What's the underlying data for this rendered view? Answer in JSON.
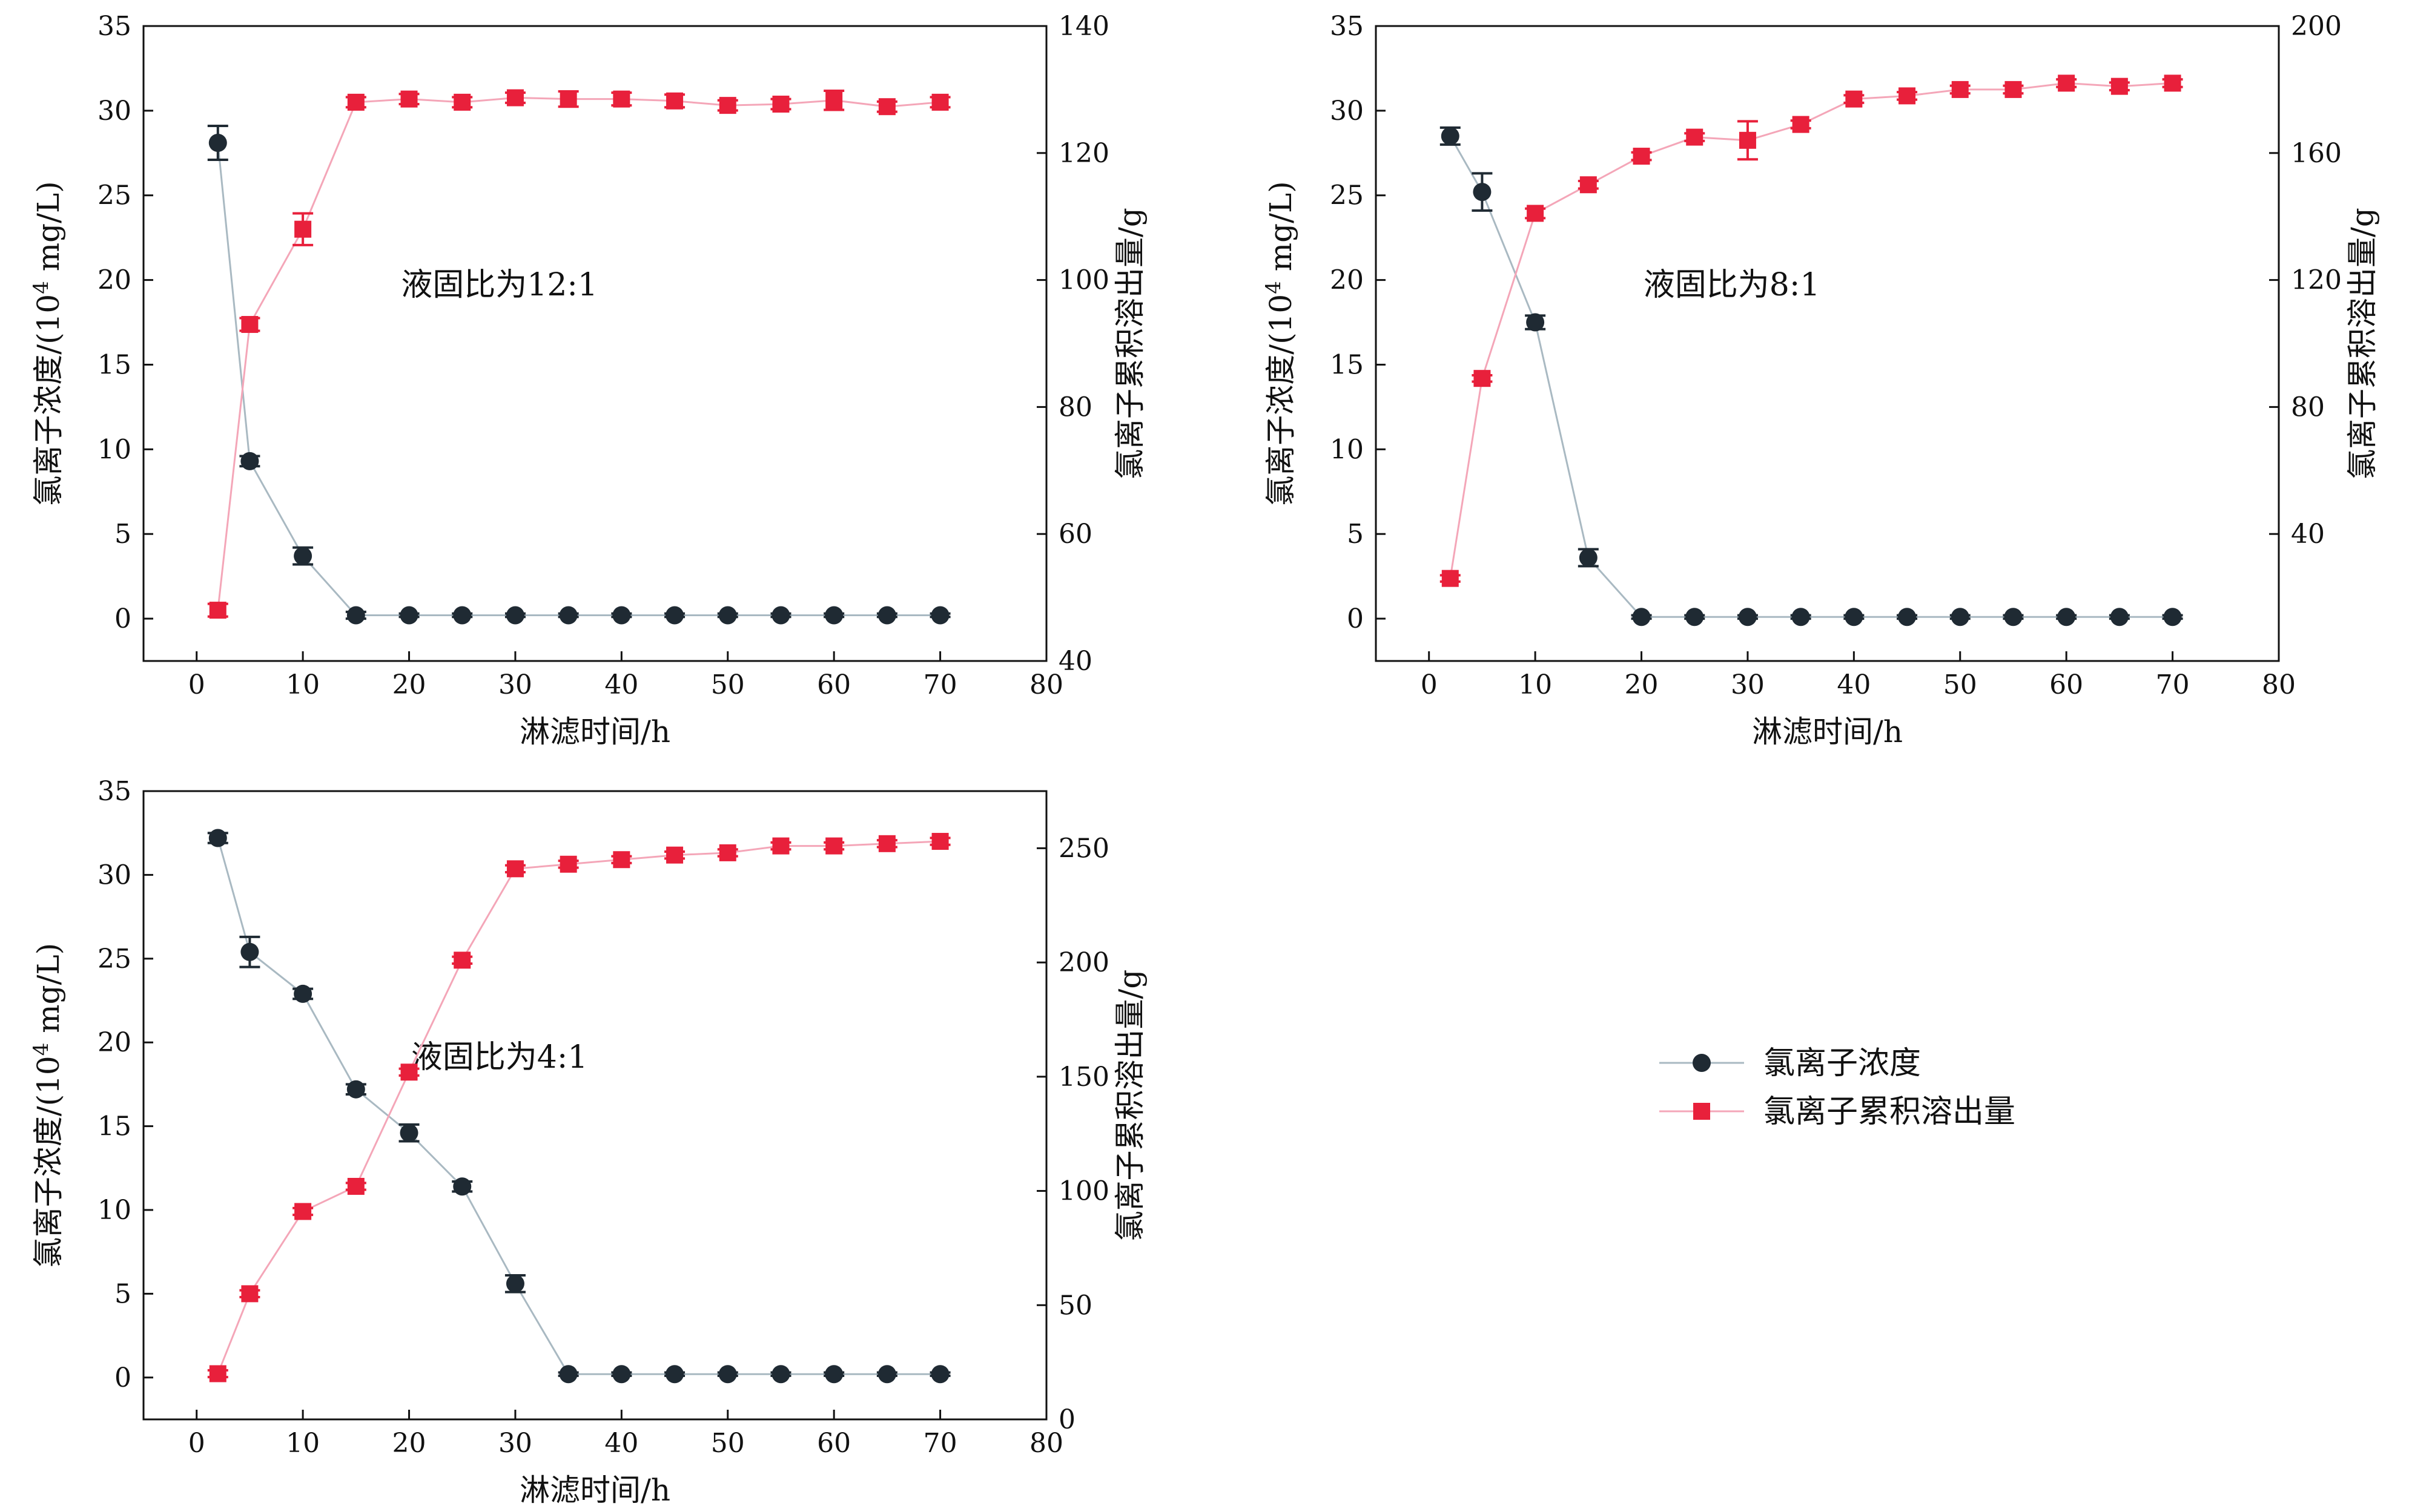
{
  "colors": {
    "chloride_concentration": "#1f2a33",
    "chloride_concentration_line": "#a9b9c2",
    "cumulative_release": "#e8203b",
    "cumulative_release_line": "#f4a6b8",
    "axes": "#111111"
  },
  "legend": {
    "items": [
      {
        "label": "氯离子浓度",
        "marker": "circle",
        "color": "#1f2a33"
      },
      {
        "label": "氯离子累积溶出量",
        "marker": "square",
        "color": "#e8203b"
      }
    ]
  },
  "chart_data": [
    {
      "type": "line",
      "title": "",
      "annotation": "液固比为12:1",
      "xlabel": "淋滤时间/h",
      "ylabel_left": "氯离子浓度/(10⁴ mg/L)",
      "ylabel_right": "氯离子累积溶出量/g",
      "xlim": [
        -5,
        80
      ],
      "xticks": [
        0,
        10,
        20,
        30,
        40,
        50,
        60,
        70,
        80
      ],
      "ylim_left": [
        -2.5,
        35
      ],
      "yticks_left": [
        0,
        5,
        10,
        15,
        20,
        25,
        30,
        35
      ],
      "ylim_right": [
        40,
        140
      ],
      "yticks_right": [
        40,
        60,
        80,
        100,
        120,
        140
      ],
      "x": [
        2,
        5,
        10,
        15,
        20,
        25,
        30,
        35,
        40,
        45,
        50,
        55,
        60,
        65,
        70
      ],
      "series": [
        {
          "name": "氯离子浓度",
          "axis": "left",
          "marker": "circle",
          "values": [
            28.1,
            9.3,
            3.7,
            0.2,
            0.2,
            0.2,
            0.2,
            0.2,
            0.2,
            0.2,
            0.2,
            0.2,
            0.2,
            0.2,
            0.2
          ],
          "errors": [
            1.0,
            0.3,
            0.5,
            0.2,
            0.1,
            0.1,
            0.1,
            0.1,
            0.1,
            0.1,
            0.1,
            0.1,
            0.1,
            0.1,
            0.1
          ]
        },
        {
          "name": "氯离子累积溶出量",
          "axis": "right",
          "marker": "square",
          "values": [
            48,
            93,
            108,
            128,
            128.5,
            128,
            128.7,
            128.5,
            128.5,
            128.2,
            127.5,
            127.7,
            128.3,
            127.3,
            128
          ],
          "errors": [
            1.0,
            1.0,
            2.5,
            0.8,
            0.8,
            0.8,
            0.8,
            1.2,
            1.0,
            1.0,
            0.8,
            0.8,
            1.5,
            0.8,
            0.8
          ]
        }
      ]
    },
    {
      "type": "line",
      "title": "",
      "annotation": "液固比为8:1",
      "xlabel": "淋滤时间/h",
      "ylabel_left": "氯离子浓度/(10⁴ mg/L)",
      "ylabel_right": "氯离子累积溶出量/g",
      "xlim": [
        -5,
        80
      ],
      "xticks": [
        0,
        10,
        20,
        30,
        40,
        50,
        60,
        70,
        80
      ],
      "ylim_left": [
        -2.5,
        35
      ],
      "yticks_left": [
        0,
        5,
        10,
        15,
        20,
        25,
        30,
        35
      ],
      "ylim_right": [
        0,
        200
      ],
      "yticks_right": [
        40,
        80,
        120,
        160,
        200
      ],
      "x": [
        2,
        5,
        10,
        15,
        20,
        25,
        30,
        35,
        40,
        45,
        50,
        55,
        60,
        65,
        70
      ],
      "series": [
        {
          "name": "氯离子浓度",
          "axis": "left",
          "marker": "circle",
          "values": [
            28.5,
            25.2,
            17.5,
            3.6,
            0.1,
            0.1,
            0.1,
            0.1,
            0.1,
            0.1,
            0.1,
            0.1,
            0.1,
            0.1,
            0.1
          ],
          "errors": [
            0.5,
            1.1,
            0.4,
            0.5,
            0.1,
            0.1,
            0.1,
            0.1,
            0.1,
            0.1,
            0.1,
            0.1,
            0.1,
            0.1,
            0.1
          ]
        },
        {
          "name": "氯离子累积溶出量",
          "axis": "right",
          "marker": "square",
          "values": [
            26,
            89,
            141,
            150,
            159,
            165,
            164,
            169,
            177,
            178,
            180,
            180,
            182,
            181,
            182
          ],
          "errors": [
            1.0,
            1.0,
            1.5,
            1.2,
            1.2,
            1.2,
            6.0,
            1.2,
            1.2,
            1.2,
            1.2,
            1.2,
            1.2,
            1.2,
            1.2
          ]
        }
      ]
    },
    {
      "type": "line",
      "title": "",
      "annotation": "液固比为4:1",
      "xlabel": "淋滤时间/h",
      "ylabel_left": "氯离子浓度/(10⁴ mg/L)",
      "ylabel_right": "氯离子累积溶出量/g",
      "xlim": [
        -5,
        80
      ],
      "xticks": [
        0,
        10,
        20,
        30,
        40,
        50,
        60,
        70,
        80
      ],
      "ylim_left": [
        -2.5,
        35
      ],
      "yticks_left": [
        0,
        5,
        10,
        15,
        20,
        25,
        30,
        35
      ],
      "ylim_right": [
        0,
        275
      ],
      "yticks_right": [
        0,
        50,
        100,
        150,
        200,
        250
      ],
      "x": [
        2,
        5,
        10,
        15,
        20,
        25,
        30,
        35,
        40,
        45,
        50,
        55,
        60,
        65,
        70
      ],
      "series": [
        {
          "name": "氯离子浓度",
          "axis": "left",
          "marker": "circle",
          "values": [
            32.2,
            25.4,
            22.9,
            17.2,
            14.6,
            11.4,
            5.6,
            0.2,
            0.2,
            0.2,
            0.2,
            0.2,
            0.2,
            0.2,
            0.2
          ],
          "errors": [
            0.3,
            0.9,
            0.3,
            0.3,
            0.5,
            0.3,
            0.5,
            0.1,
            0.1,
            0.1,
            0.1,
            0.1,
            0.1,
            0.1,
            0.1
          ]
        },
        {
          "name": "氯离子累积溶出量",
          "axis": "right",
          "marker": "square",
          "values": [
            20,
            55,
            91,
            102,
            152,
            201,
            241,
            243,
            245,
            247,
            248,
            251,
            251,
            252,
            253
          ],
          "errors": [
            1.5,
            1.5,
            1.5,
            1.5,
            1.5,
            1.5,
            1.5,
            1.5,
            1.5,
            1.5,
            1.5,
            1.5,
            1.5,
            1.5,
            1.5
          ]
        }
      ]
    }
  ]
}
